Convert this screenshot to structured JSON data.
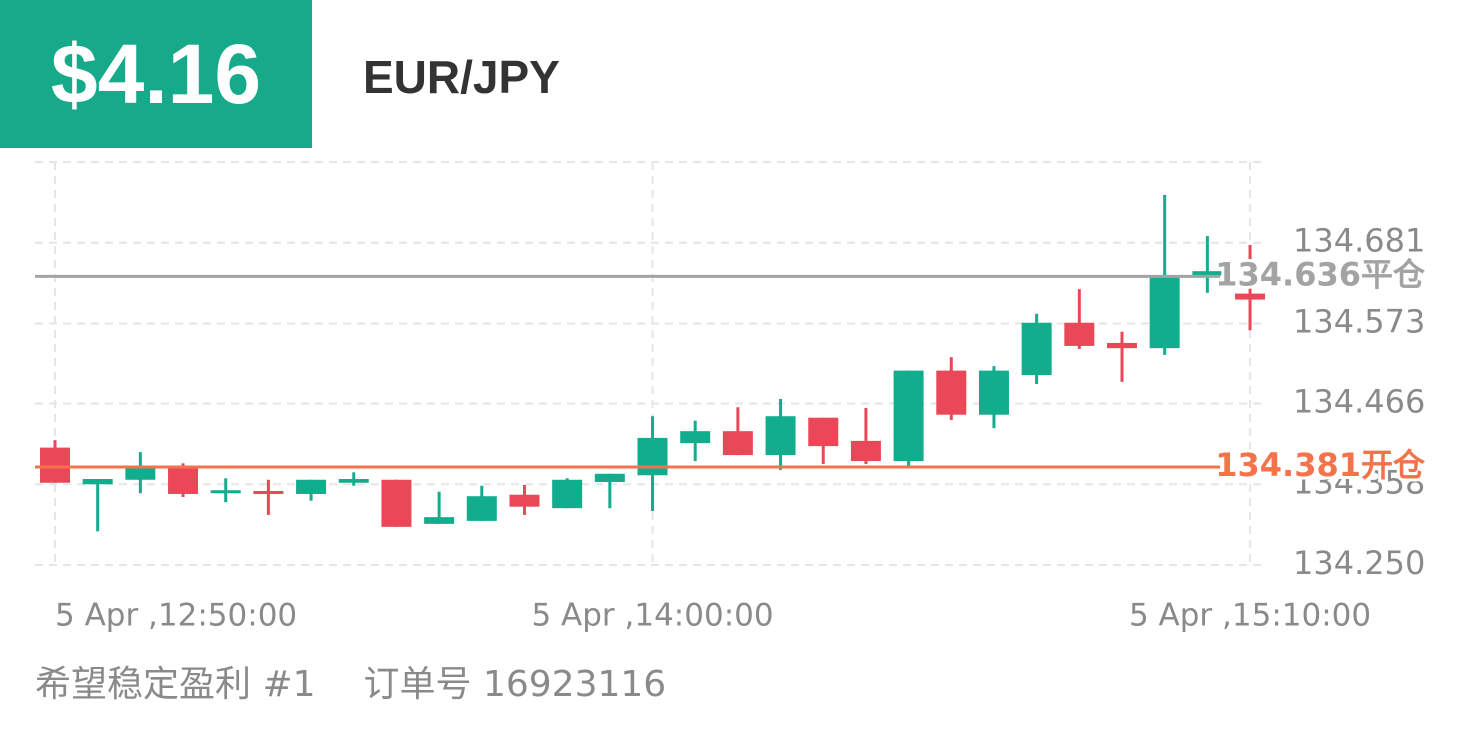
{
  "header": {
    "profit": "$4.16",
    "symbol": "EUR/JPY"
  },
  "chart_data": {
    "type": "candlestick",
    "categories": [
      "5 Apr ,12:50:00",
      null,
      null,
      null,
      null,
      null,
      null,
      null,
      null,
      null,
      null,
      null,
      null,
      null,
      "5 Apr ,14:00:00",
      null,
      null,
      null,
      null,
      null,
      null,
      null,
      null,
      null,
      null,
      null,
      null,
      null,
      "5 Apr ,15:10:00"
    ],
    "open": [
      134.407,
      134.358,
      134.364,
      134.382,
      134.346,
      134.349,
      134.345,
      134.36,
      134.364,
      134.305,
      134.309,
      134.344,
      134.326,
      134.361,
      134.37,
      134.413,
      134.429,
      134.397,
      134.447,
      134.416,
      134.389,
      134.51,
      134.451,
      134.504,
      134.574,
      134.547,
      134.54,
      134.637,
      134.613
    ],
    "high": [
      134.417,
      134.365,
      134.401,
      134.386,
      134.366,
      134.364,
      134.364,
      134.374,
      134.364,
      134.348,
      134.356,
      134.357,
      134.366,
      134.372,
      134.449,
      134.443,
      134.461,
      134.472,
      134.447,
      134.46,
      134.51,
      134.528,
      134.516,
      134.586,
      134.619,
      134.562,
      134.745,
      134.69,
      134.678
    ],
    "low": [
      134.36,
      134.295,
      134.346,
      134.341,
      134.334,
      134.317,
      134.336,
      134.356,
      134.301,
      134.305,
      134.309,
      134.317,
      134.326,
      134.326,
      134.322,
      134.389,
      134.397,
      134.377,
      134.385,
      134.385,
      134.382,
      134.444,
      134.433,
      134.492,
      134.539,
      134.495,
      134.531,
      134.614,
      134.564
    ],
    "close": [
      134.36,
      134.365,
      134.38,
      134.345,
      134.35,
      134.345,
      134.364,
      134.365,
      134.301,
      134.314,
      134.342,
      134.328,
      134.364,
      134.372,
      134.42,
      134.429,
      134.397,
      134.449,
      134.409,
      134.389,
      134.51,
      134.451,
      134.51,
      134.574,
      134.543,
      134.54,
      134.635,
      134.643,
      134.605
    ],
    "up_color": "#12ad8d",
    "down_color": "#ea4858",
    "ylim": [
      134.25,
      134.789
    ],
    "yticks": [
      {
        "value": 134.25,
        "label": "134.250"
      },
      134.358,
      134.466,
      134.573,
      134.681
    ],
    "grid": true,
    "lines": [
      {
        "value": 134.636,
        "label": "134.636平仓",
        "color": "#a3a3a3"
      },
      {
        "value": 134.381,
        "label": "134.381开仓",
        "color": "#f4734a"
      }
    ]
  },
  "footer": {
    "account": "希望稳定盈利 #1",
    "order": "订单号 16923116"
  }
}
